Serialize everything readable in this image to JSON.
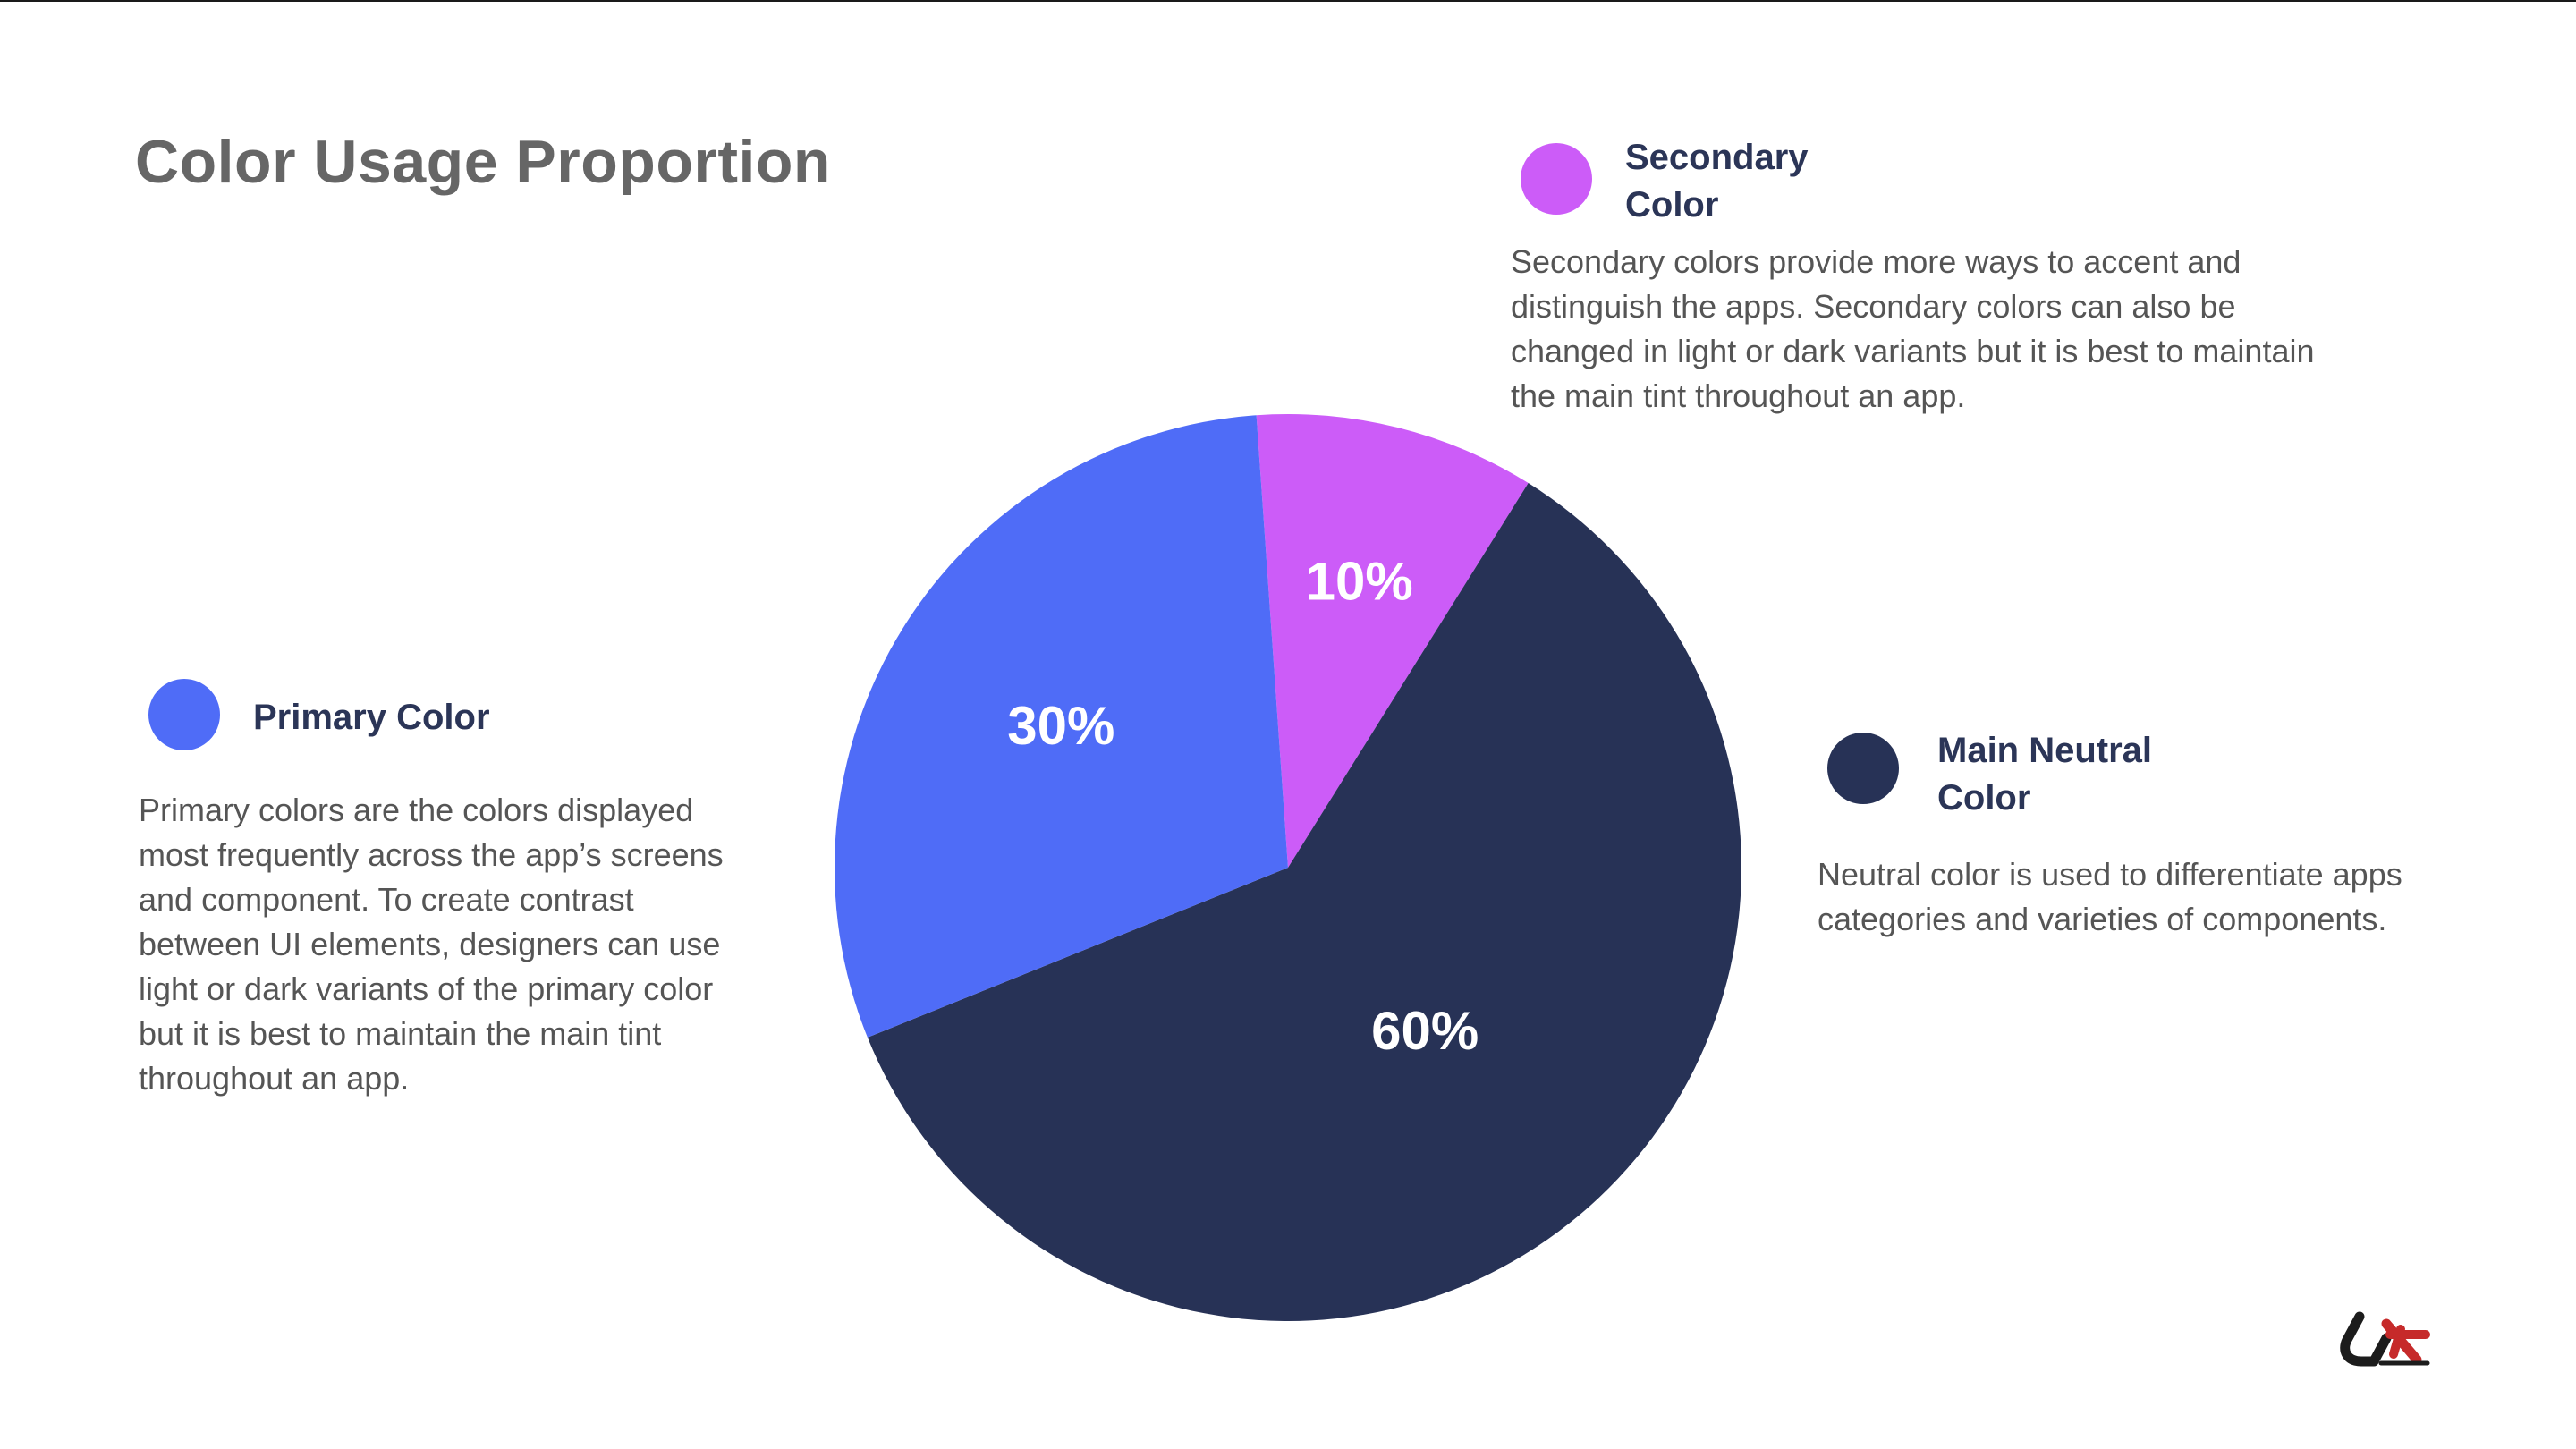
{
  "title": "Color Usage Proportion",
  "legend": {
    "primary": {
      "title": "Primary Color",
      "description": "Primary colors are the colors displayed most frequently across the app’s screens and component. To create contrast between UI elements, designers can use light or dark variants of the primary color but it is best to maintain the main tint throughout an app.",
      "color": "#4f6cf7"
    },
    "secondary": {
      "title": "Secondary Color",
      "description": "Secondary colors provide more ways to accent and distinguish the apps. Secondary colors can also be changed in light or dark variants but it is best to maintain the main tint throughout an app.",
      "color": "#cc5cf8"
    },
    "neutral": {
      "title": "Main Neutral Color",
      "description": "Neutral color is used to differentiate apps categories and varieties of components.",
      "color": "#273256"
    }
  },
  "chart_data": {
    "type": "pie",
    "title": "Color Usage Proportion",
    "slices": [
      {
        "name": "Secondary Color",
        "value": 10,
        "label": "10%",
        "color": "#cc5cf8"
      },
      {
        "name": "Main Neutral Color",
        "value": 60,
        "label": "60%",
        "color": "#273256"
      },
      {
        "name": "Primary Color",
        "value": 30,
        "label": "30%",
        "color": "#4f6cf7"
      }
    ],
    "start": "near 12 o'clock, clockwise"
  },
  "logo": {
    "name": "uxhub-logo",
    "colors": [
      "#1c1c1c",
      "#c62a2a"
    ]
  }
}
